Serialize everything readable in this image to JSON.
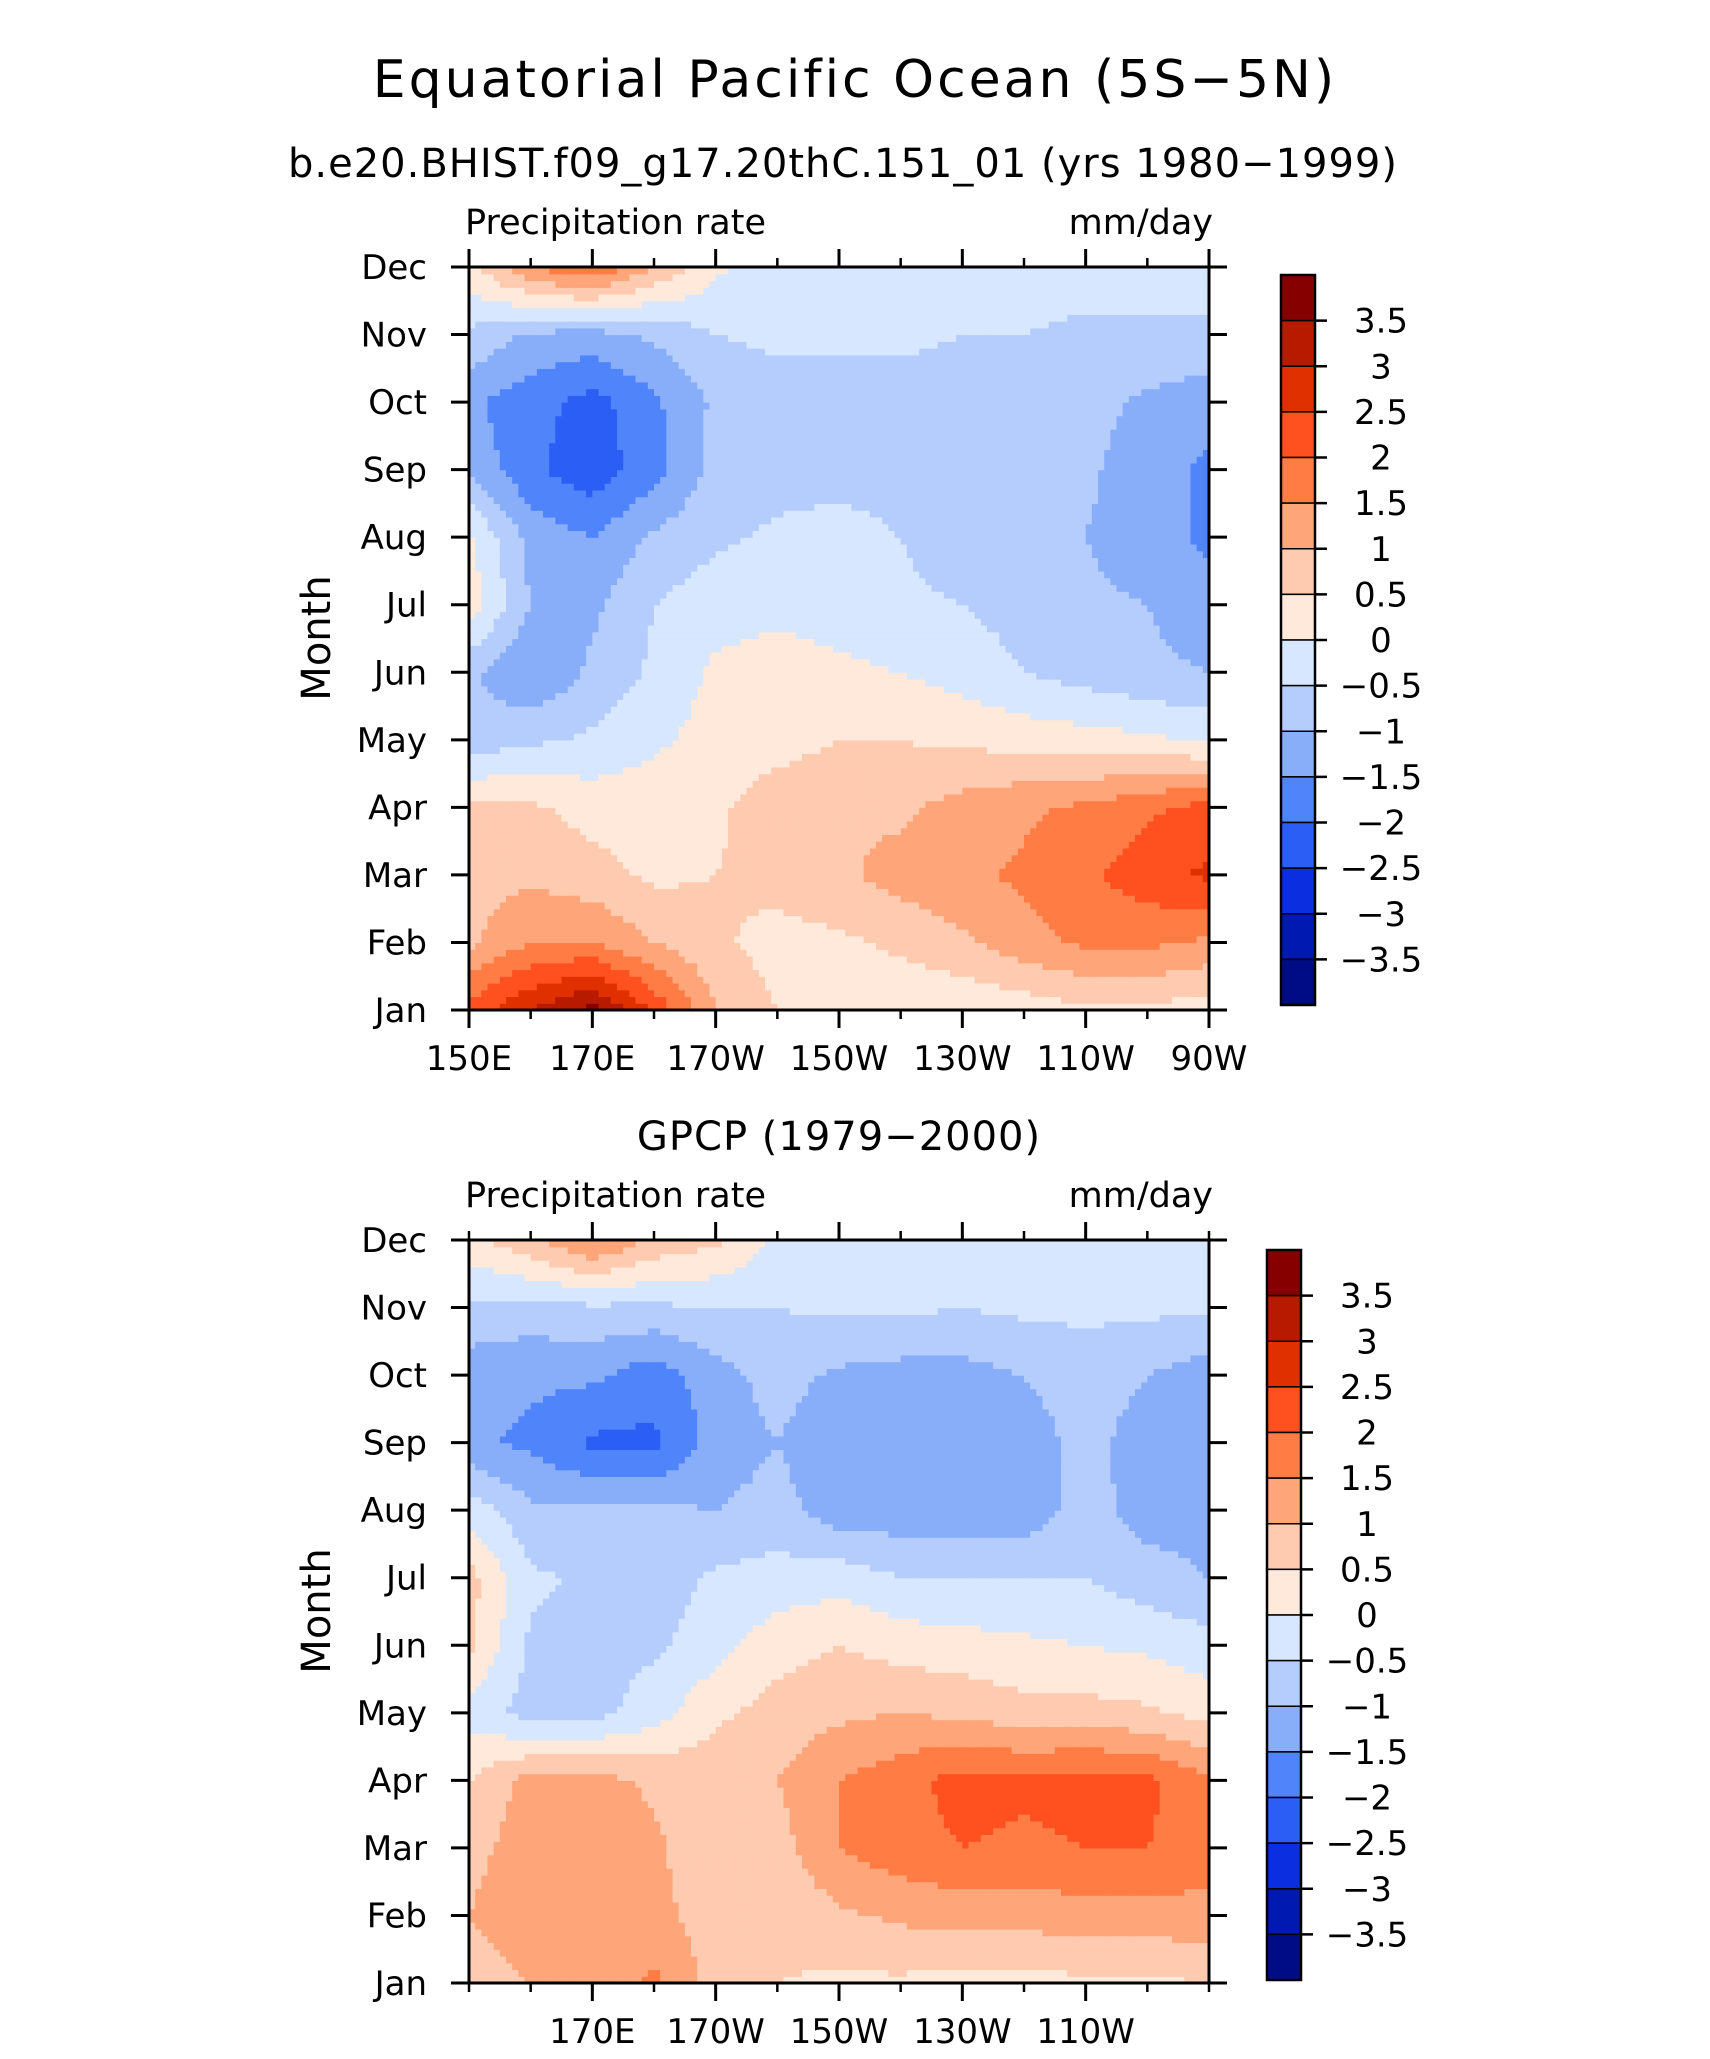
{
  "figure": {
    "title": "Equatorial Pacific Ocean (5S−5N)"
  },
  "colorbar": {
    "labels": [
      "3.5",
      "3",
      "2.5",
      "2",
      "1.5",
      "1",
      "0.5",
      "0",
      "−0.5",
      "−1",
      "−1.5",
      "−2",
      "−2.5",
      "−3",
      "−3.5"
    ],
    "levels": [
      3.5,
      3,
      2.5,
      2,
      1.5,
      1,
      0.5,
      0,
      -0.5,
      -1,
      -1.5,
      -2,
      -2.5,
      -3,
      -3.5
    ],
    "colors": [
      "#870000",
      "#b81a00",
      "#e03000",
      "#ff5020",
      "#ff7d45",
      "#ffa57a",
      "#ffcbb0",
      "#ffe9da",
      "#d7e7ff",
      "#b5cdfc",
      "#88aefa",
      "#4f84fa",
      "#2b5ef5",
      "#0b2fe0",
      "#0019b0",
      "#000c85"
    ]
  },
  "chart_data": [
    {
      "type": "heatmap",
      "subtitle": "b.e20.BHIST.f09_g17.20thC.151_01 (yrs 1980−1999)",
      "corner_left": "Precipitation rate",
      "corner_right": "mm/day",
      "ylabel": "Month",
      "x_tick_labels": [
        "150E",
        "170E",
        "170W",
        "150W",
        "130W",
        "110W",
        "90W"
      ],
      "x_tick_values": [
        150,
        170,
        190,
        210,
        230,
        250,
        270
      ],
      "y_tick_labels": [
        "Jan",
        "Feb",
        "Mar",
        "Apr",
        "May",
        "Jun",
        "Jul",
        "Aug",
        "Sep",
        "Oct",
        "Nov",
        "Dec"
      ],
      "xlim": [
        150,
        270
      ],
      "lon": [
        150,
        160,
        170,
        180,
        190,
        200,
        210,
        220,
        230,
        240,
        250,
        260,
        270
      ],
      "values": [
        [
          2.2,
          3.0,
          3.7,
          2.4,
          1.0,
          0.5,
          0.2,
          0.1,
          0.1,
          0.2,
          0.4,
          0.4,
          0.2
        ],
        [
          0.9,
          1.5,
          1.5,
          1.0,
          0.6,
          0.3,
          0.4,
          0.6,
          0.9,
          1.3,
          1.6,
          1.6,
          1.4
        ],
        [
          0.8,
          0.9,
          0.7,
          0.4,
          0.5,
          0.7,
          0.9,
          1.2,
          1.4,
          1.6,
          1.9,
          2.3,
          2.6
        ],
        [
          0.6,
          0.6,
          0.3,
          0.3,
          0.4,
          0.8,
          0.9,
          0.9,
          1.2,
          1.4,
          1.6,
          1.9,
          2.2
        ],
        [
          -0.8,
          -0.6,
          -0.4,
          -0.1,
          0.2,
          0.3,
          0.5,
          0.5,
          0.4,
          0.3,
          0.2,
          0.1,
          -0.1
        ],
        [
          -0.9,
          -1.5,
          -0.9,
          -0.4,
          0.1,
          0.2,
          0.1,
          0.0,
          -0.2,
          -0.5,
          -0.7,
          -0.9,
          -1.0
        ],
        [
          0.3,
          -1.0,
          -1.1,
          -0.5,
          -0.2,
          -0.1,
          -0.2,
          -0.4,
          -0.5,
          -0.7,
          -0.9,
          -1.0,
          -1.3
        ],
        [
          0.1,
          -1.2,
          -1.5,
          -0.9,
          -0.6,
          -0.4,
          -0.3,
          -0.5,
          -0.8,
          -0.9,
          -1.0,
          -1.3,
          -1.6
        ],
        [
          -1.1,
          -1.9,
          -2.3,
          -1.7,
          -0.8,
          -0.7,
          -0.7,
          -0.7,
          -0.8,
          -0.9,
          -0.9,
          -1.3,
          -1.6
        ],
        [
          -1.4,
          -1.8,
          -2.2,
          -1.6,
          -0.9,
          -0.7,
          -0.7,
          -0.7,
          -0.7,
          -0.7,
          -0.8,
          -1.1,
          -1.3
        ],
        [
          -0.6,
          -1.1,
          -1.2,
          -0.9,
          -0.5,
          -0.4,
          -0.4,
          -0.4,
          -0.5,
          -0.5,
          -0.6,
          -0.6,
          -0.6
        ],
        [
          0.3,
          1.5,
          2.0,
          1.0,
          0.1,
          -0.3,
          -0.3,
          -0.3,
          -0.3,
          -0.3,
          -0.3,
          -0.3,
          -0.3
        ]
      ]
    },
    {
      "type": "heatmap",
      "subtitle": "GPCP (1979−2000)",
      "corner_left": "Precipitation rate",
      "corner_right": "mm/day",
      "ylabel": "Month",
      "x_tick_labels": [
        "170E",
        "170W",
        "150W",
        "130W",
        "110W"
      ],
      "x_tick_values": [
        170,
        190,
        210,
        230,
        250
      ],
      "y_tick_labels": [
        "Jan",
        "Feb",
        "Mar",
        "Apr",
        "May",
        "Jun",
        "Jul",
        "Aug",
        "Sep",
        "Oct",
        "Nov",
        "Dec"
      ],
      "xlim": [
        150,
        270
      ],
      "lon": [
        150,
        160,
        170,
        180,
        190,
        200,
        210,
        220,
        230,
        240,
        250,
        260,
        270
      ],
      "values": [
        [
          0.6,
          1.0,
          1.2,
          1.6,
          0.8,
          0.5,
          0.4,
          0.4,
          0.3,
          0.3,
          0.4,
          0.4,
          0.5
        ],
        [
          1.0,
          1.5,
          1.3,
          1.2,
          0.7,
          0.6,
          0.9,
          1.1,
          1.2,
          1.2,
          1.3,
          1.3,
          1.3
        ],
        [
          0.8,
          1.3,
          1.4,
          1.1,
          0.6,
          0.8,
          1.5,
          1.8,
          2.0,
          1.9,
          2.0,
          2.0,
          1.8
        ],
        [
          0.5,
          1.2,
          1.2,
          0.9,
          0.8,
          1.0,
          1.5,
          1.8,
          2.2,
          2.1,
          2.2,
          2.1,
          1.6
        ],
        [
          -0.2,
          -0.7,
          -0.7,
          -0.2,
          0.4,
          0.7,
          0.9,
          1.0,
          0.9,
          0.7,
          0.7,
          0.6,
          0.3
        ],
        [
          0.6,
          -0.6,
          -0.7,
          -0.6,
          -0.2,
          0.3,
          0.5,
          0.3,
          0.2,
          0.1,
          0.0,
          -0.1,
          -0.3
        ],
        [
          0.7,
          -0.4,
          -0.6,
          -0.8,
          -0.4,
          -0.3,
          -0.2,
          -0.5,
          -0.5,
          -0.5,
          -0.5,
          -0.8,
          -1.0
        ],
        [
          -0.2,
          -0.9,
          -0.9,
          -0.9,
          -1.0,
          -0.8,
          -1.3,
          -1.3,
          -1.4,
          -1.3,
          -0.8,
          -1.2,
          -1.2
        ],
        [
          -1.4,
          -1.6,
          -2.1,
          -2.1,
          -1.3,
          -1.0,
          -1.4,
          -1.4,
          -1.4,
          -1.3,
          -0.8,
          -1.3,
          -1.3
        ],
        [
          -1.3,
          -1.4,
          -1.4,
          -1.8,
          -1.2,
          -0.8,
          -1.1,
          -1.2,
          -1.2,
          -1.0,
          -0.7,
          -1.0,
          -1.3
        ],
        [
          -0.6,
          -0.7,
          -0.6,
          -0.6,
          -0.5,
          -0.5,
          -0.4,
          -0.4,
          -0.5,
          -0.4,
          -0.4,
          -0.4,
          -0.4
        ],
        [
          0.3,
          0.9,
          1.6,
          0.9,
          0.6,
          -0.1,
          -0.3,
          -0.3,
          -0.3,
          -0.3,
          -0.3,
          -0.3,
          -0.3
        ]
      ]
    }
  ]
}
